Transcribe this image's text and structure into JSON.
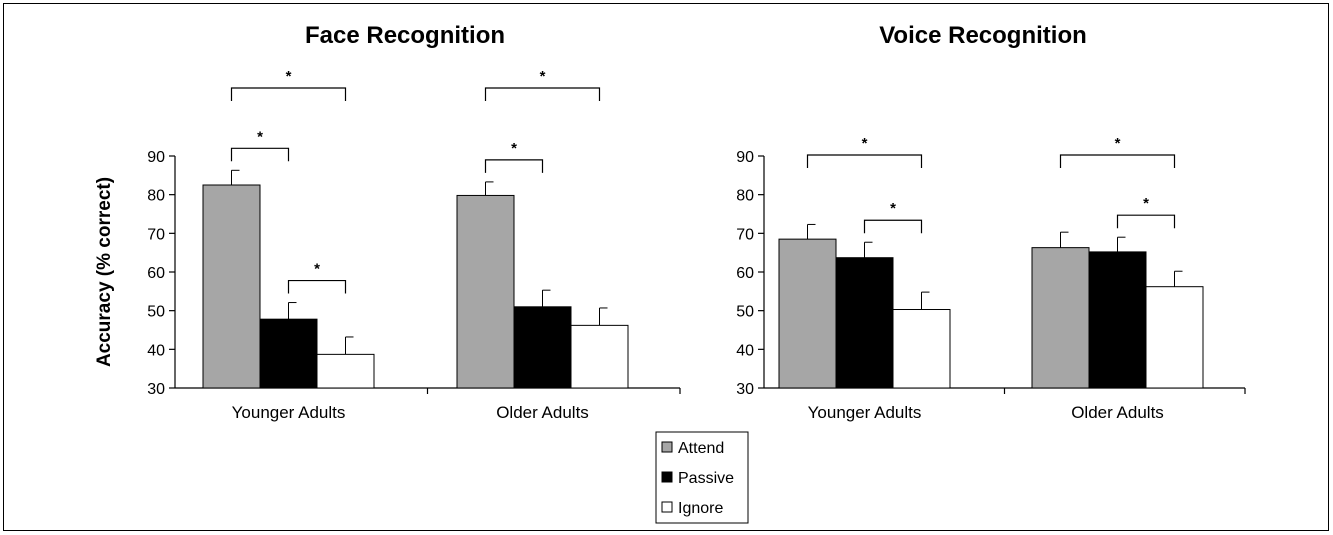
{
  "chart_data": [
    {
      "type": "bar",
      "title": "Face Recognition",
      "ylabel": "Accuracy (% correct)",
      "xlabel": "",
      "ylim": [
        30,
        90
      ],
      "yticks": [
        30,
        40,
        50,
        60,
        70,
        80,
        90
      ],
      "categories": [
        "Younger Adults",
        "Older Adults"
      ],
      "series": [
        {
          "name": "Attend",
          "values": [
            82.5,
            79.8
          ],
          "errors": [
            3.8,
            3.5
          ],
          "color": "#a6a6a6"
        },
        {
          "name": "Passive",
          "values": [
            47.8,
            51.0
          ],
          "errors": [
            4.3,
            4.3
          ],
          "color": "#000000"
        },
        {
          "name": "Ignore",
          "values": [
            38.7,
            46.2
          ],
          "errors": [
            4.5,
            4.5
          ],
          "color": "#ffffff"
        }
      ],
      "significance": [
        {
          "category": 0,
          "from": 0,
          "to": 1,
          "label": "*"
        },
        {
          "category": 0,
          "from": 0,
          "to": 2,
          "label": "*"
        },
        {
          "category": 0,
          "from": 1,
          "to": 2,
          "label": "*"
        },
        {
          "category": 1,
          "from": 0,
          "to": 1,
          "label": "*"
        },
        {
          "category": 1,
          "from": 0,
          "to": 2,
          "label": "*"
        }
      ]
    },
    {
      "type": "bar",
      "title": "Voice Recognition",
      "ylabel": "",
      "xlabel": "",
      "ylim": [
        30,
        90
      ],
      "yticks": [
        30,
        40,
        50,
        60,
        70,
        80,
        90
      ],
      "categories": [
        "Younger Adults",
        "Older Adults"
      ],
      "series": [
        {
          "name": "Attend",
          "values": [
            68.5,
            66.3
          ],
          "errors": [
            3.8,
            4.0
          ],
          "color": "#a6a6a6"
        },
        {
          "name": "Passive",
          "values": [
            63.7,
            65.2
          ],
          "errors": [
            4.0,
            3.8
          ],
          "color": "#000000"
        },
        {
          "name": "Ignore",
          "values": [
            50.3,
            56.2
          ],
          "errors": [
            4.5,
            4.0
          ],
          "color": "#ffffff"
        }
      ],
      "significance": [
        {
          "category": 0,
          "from": 0,
          "to": 2,
          "label": "*"
        },
        {
          "category": 0,
          "from": 1,
          "to": 2,
          "label": "*"
        },
        {
          "category": 1,
          "from": 0,
          "to": 2,
          "label": "*"
        },
        {
          "category": 1,
          "from": 1,
          "to": 2,
          "label": "*"
        }
      ]
    }
  ],
  "legend": {
    "placement": "bottom-center",
    "items": [
      {
        "label": "Attend",
        "color": "#a6a6a6"
      },
      {
        "label": "Passive",
        "color": "#000000"
      },
      {
        "label": "Ignore",
        "color": "#ffffff"
      }
    ]
  }
}
